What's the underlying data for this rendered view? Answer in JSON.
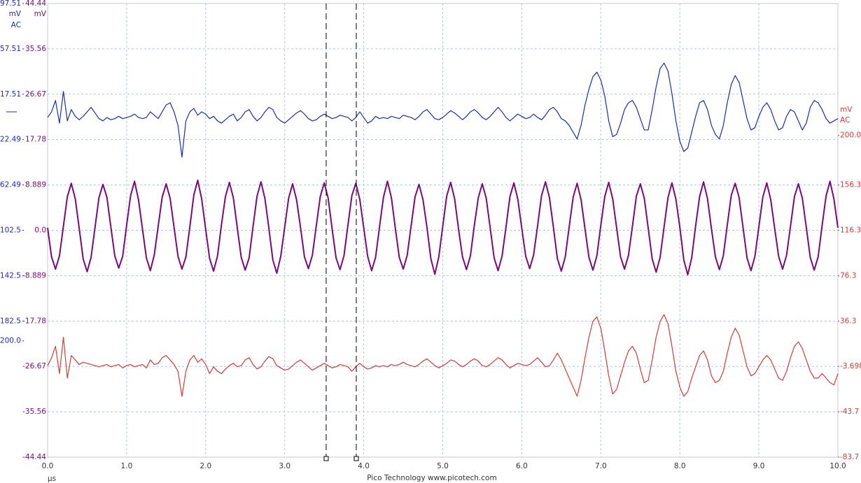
{
  "chart_data": {
    "type": "line",
    "x": [
      0,
      0.05,
      0.1,
      0.15,
      0.2,
      0.25,
      0.3,
      0.35,
      0.4,
      0.45,
      0.5,
      0.55,
      0.6,
      0.65,
      0.7,
      0.75,
      0.8,
      0.85,
      0.9,
      0.95,
      1,
      1.05,
      1.1,
      1.15,
      1.2,
      1.25,
      1.3,
      1.35,
      1.4,
      1.45,
      1.5,
      1.55,
      1.6,
      1.65,
      1.7,
      1.75,
      1.8,
      1.85,
      1.9,
      1.95,
      2,
      2.05,
      2.1,
      2.15,
      2.2,
      2.25,
      2.3,
      2.35,
      2.4,
      2.45,
      2.5,
      2.55,
      2.6,
      2.65,
      2.7,
      2.75,
      2.8,
      2.85,
      2.9,
      2.95,
      3,
      3.05,
      3.1,
      3.15,
      3.2,
      3.25,
      3.3,
      3.35,
      3.4,
      3.45,
      3.5,
      3.55,
      3.6,
      3.65,
      3.7,
      3.75,
      3.8,
      3.85,
      3.9,
      3.95,
      4,
      4.05,
      4.1,
      4.15,
      4.2,
      4.25,
      4.3,
      4.35,
      4.4,
      4.45,
      4.5,
      4.55,
      4.6,
      4.65,
      4.7,
      4.75,
      4.8,
      4.85,
      4.9,
      4.95,
      5,
      5.05,
      5.1,
      5.15,
      5.2,
      5.25,
      5.3,
      5.35,
      5.4,
      5.45,
      5.5,
      5.55,
      5.6,
      5.65,
      5.7,
      5.75,
      5.8,
      5.85,
      5.9,
      5.95,
      6,
      6.05,
      6.1,
      6.15,
      6.2,
      6.25,
      6.3,
      6.35,
      6.4,
      6.45,
      6.5,
      6.55,
      6.6,
      6.65,
      6.7,
      6.75,
      6.8,
      6.85,
      6.9,
      6.95,
      7,
      7.05,
      7.1,
      7.15,
      7.2,
      7.25,
      7.3,
      7.35,
      7.4,
      7.45,
      7.5,
      7.55,
      7.6,
      7.65,
      7.7,
      7.75,
      7.8,
      7.85,
      7.9,
      7.95,
      8,
      8.05,
      8.1,
      8.15,
      8.2,
      8.25,
      8.3,
      8.35,
      8.4,
      8.45,
      8.5,
      8.55,
      8.6,
      8.65,
      8.7,
      8.75,
      8.8,
      8.85,
      8.9,
      8.95,
      9,
      9.05,
      9.1,
      9.15,
      9.2,
      9.25,
      9.3,
      9.35,
      9.4,
      9.45,
      9.5,
      9.55,
      9.6,
      9.65,
      9.7,
      9.75,
      9.8,
      9.85,
      9.9,
      9.95,
      10
    ],
    "xlim": [
      0,
      10
    ],
    "xticks": [
      {
        "value": 0,
        "label": "0.0"
      },
      {
        "value": 1,
        "label": "1.0"
      },
      {
        "value": 2,
        "label": "2.0"
      },
      {
        "value": 3,
        "label": "3.0"
      },
      {
        "value": 4,
        "label": "4.0"
      },
      {
        "value": 5,
        "label": "5.0"
      },
      {
        "value": 6,
        "label": "6.0"
      },
      {
        "value": 7,
        "label": "7.0"
      },
      {
        "value": 8,
        "label": "8.0"
      },
      {
        "value": 9,
        "label": "9.0"
      },
      {
        "value": 10,
        "label": "10.0"
      }
    ],
    "x_unit": "µs",
    "footer": "Pico Technology  www.picotech.com",
    "ylim": [
      -44.44,
      44.44
    ],
    "yticks": [
      44.44,
      35.56,
      26.67,
      17.78,
      8.889,
      {
        "value": 0,
        "label": "0.0"
      },
      -8.889,
      -17.78,
      -26.67,
      -35.56,
      -44.44
    ],
    "y_unit": "mV",
    "y2lim": [
      -83.7,
      316.3
    ],
    "y2ticks": [
      {
        "value": 200,
        "label": "200.0"
      },
      156.3,
      116.3,
      76.3,
      36.3,
      -3.698,
      -43.7,
      -83.7
    ],
    "y2_unit": "mV",
    "y2_coupling": "AC",
    "y3lim": [
      -302.49,
      97.51
    ],
    "y3ticks": [
      97.51,
      57.51,
      17.51,
      -22.49,
      -62.49,
      -102.5,
      -142.5,
      -182.5,
      {
        "value": -200,
        "label": "-200.0"
      }
    ],
    "y3_unit": "mV",
    "y3_coupling": "AC",
    "grid": true,
    "cursors": [
      3.525,
      3.906
    ],
    "series": [
      {
        "color": "#1c2db4",
        "axis": "y3",
        "values": [
          -3,
          2,
          12,
          -8,
          20,
          -6,
          4,
          -2,
          -5,
          -2,
          2,
          6,
          1,
          -4,
          -6,
          -3,
          -5,
          -4,
          -2,
          -4,
          -3,
          -2,
          0,
          -3,
          -4,
          -3,
          2,
          -1,
          -4,
          2,
          8,
          10,
          2,
          -10,
          -38,
          -6,
          2,
          5,
          -1,
          2,
          0,
          -4,
          -2,
          -6,
          -8,
          -5,
          -2,
          0,
          -6,
          -3,
          2,
          4,
          -2,
          -6,
          -3,
          2,
          6,
          4,
          -3,
          -6,
          -8,
          -5,
          -2,
          1,
          3,
          0,
          -4,
          -6,
          -5,
          -2,
          0,
          -2,
          -4,
          -3,
          -1,
          -2,
          -3,
          -6,
          -3,
          2,
          -3,
          -8,
          -6,
          -2,
          -4,
          -3,
          -4,
          -2,
          -3,
          -4,
          -1,
          -2,
          -3,
          -5,
          -2,
          2,
          4,
          0,
          -4,
          -5,
          -3,
          0,
          3,
          1,
          -2,
          -5,
          -2,
          2,
          4,
          1,
          -3,
          -5,
          -2,
          2,
          6,
          2,
          -3,
          -6,
          -3,
          0,
          -2,
          -4,
          -3,
          0,
          -3,
          -5,
          -1,
          4,
          6,
          2,
          -4,
          -6,
          -10,
          -16,
          -22,
          -10,
          8,
          22,
          33,
          37,
          30,
          16,
          -6,
          -20,
          -18,
          -8,
          4,
          10,
          12,
          6,
          -4,
          -14,
          -14,
          4,
          24,
          40,
          45,
          38,
          18,
          -6,
          -24,
          -33,
          -30,
          -16,
          -2,
          10,
          12,
          4,
          -10,
          -18,
          -22,
          -10,
          10,
          26,
          34,
          28,
          12,
          -4,
          -14,
          -12,
          -2,
          6,
          10,
          4,
          -6,
          -14,
          -12,
          -2,
          4,
          2,
          -6,
          -14,
          -8,
          6,
          12,
          10,
          4,
          -4,
          -8,
          -6,
          -4
        ]
      },
      {
        "color": "#7a0a7a",
        "values": [
          0.5,
          -5.2,
          -7.6,
          -5.0,
          0.8,
          6.6,
          9.2,
          6.2,
          0.4,
          -5.6,
          -8.1,
          -5.3,
          0.6,
          6.4,
          9.0,
          6.5,
          0.7,
          -5.0,
          -7.4,
          -5.1,
          1.0,
          6.8,
          9.6,
          6.0,
          0.3,
          -5.4,
          -7.9,
          -4.8,
          0.9,
          6.5,
          9.1,
          6.3,
          0.6,
          -5.1,
          -7.6,
          -5.2,
          0.7,
          6.9,
          9.8,
          6.1,
          0.2,
          -5.5,
          -8.0,
          -5.0,
          1.1,
          6.6,
          9.4,
          6.4,
          0.5,
          -5.3,
          -7.8,
          -5.4,
          0.8,
          6.7,
          9.5,
          6.2,
          0.4,
          -5.8,
          -8.4,
          -5.1,
          0.6,
          6.3,
          9.1,
          6.0,
          0.6,
          -5.2,
          -7.5,
          -4.9,
          0.9,
          6.6,
          9.3,
          6.3,
          0.3,
          -5.4,
          -7.7,
          -5.0,
          1.0,
          6.8,
          9.2,
          6.1,
          0.5,
          -5.1,
          -7.9,
          -5.3,
          0.7,
          6.5,
          9.6,
          6.4,
          0.4,
          -5.3,
          -7.6,
          -4.9,
          0.9,
          6.6,
          9.0,
          6.0,
          0.6,
          -5.6,
          -8.6,
          -5.2,
          0.8,
          6.7,
          9.4,
          6.2,
          0.2,
          -5.2,
          -7.7,
          -5.0,
          1.0,
          6.4,
          9.1,
          6.3,
          0.5,
          -5.4,
          -7.9,
          -5.1,
          0.6,
          6.6,
          9.3,
          6.1,
          0.4,
          -5.1,
          -7.5,
          -4.8,
          0.9,
          6.8,
          9.5,
          6.4,
          0.6,
          -5.5,
          -8.0,
          -5.2,
          0.7,
          6.5,
          9.2,
          6.0,
          0.3,
          -5.3,
          -7.8,
          -5.0,
          1.0,
          6.6,
          9.4,
          6.2,
          0.5,
          -5.2,
          -7.6,
          -4.9,
          0.8,
          6.7,
          9.1,
          6.3,
          0.4,
          -5.6,
          -8.2,
          -5.3,
          0.6,
          6.4,
          9.3,
          6.1,
          0.6,
          -5.8,
          -8.7,
          -5.4,
          0.9,
          6.6,
          9.5,
          6.2,
          0.3,
          -5.2,
          -7.7,
          -5.0,
          1.0,
          6.8,
          9.2,
          6.4,
          0.5,
          -5.4,
          -7.9,
          -5.1,
          0.7,
          6.5,
          9.3,
          6.0,
          0.4,
          -5.1,
          -7.6,
          -4.9,
          0.8,
          6.6,
          9.1,
          6.3,
          0.6,
          -5.3,
          -7.8,
          -5.2,
          0.9,
          6.7,
          9.6,
          6.1,
          0.5
        ]
      },
      {
        "color": "#d23c3c",
        "axis": "y2",
        "values": [
          -3,
          4,
          14,
          -10,
          22,
          -14,
          6,
          2,
          -2,
          0,
          -1,
          -2,
          -3,
          -4,
          -3,
          -2,
          -4,
          -3,
          -2,
          -5,
          -3,
          -2,
          -4,
          -3,
          -2,
          -5,
          2,
          -2,
          -1,
          4,
          6,
          2,
          -2,
          -8,
          -30,
          -8,
          2,
          6,
          0,
          3,
          -2,
          -10,
          -4,
          -8,
          -10,
          -6,
          -3,
          -1,
          -4,
          -3,
          2,
          4,
          -2,
          -6,
          -4,
          1,
          5,
          3,
          -3,
          -5,
          -7,
          -6,
          -3,
          0,
          2,
          -1,
          -4,
          -7,
          -5,
          -3,
          -1,
          -3,
          -5,
          -4,
          -2,
          -3,
          -4,
          -8,
          -4,
          -1,
          -4,
          -6,
          -5,
          -3,
          -4,
          -3,
          -4,
          -2,
          -3,
          -2,
          0,
          -2,
          -3,
          -4,
          -2,
          1,
          3,
          0,
          -3,
          -5,
          -3,
          -1,
          2,
          1,
          -2,
          -4,
          -2,
          1,
          3,
          1,
          -3,
          -4,
          -2,
          1,
          4,
          2,
          -2,
          -5,
          -3,
          -1,
          -2,
          -3,
          -2,
          1,
          4,
          0,
          -4,
          -3,
          2,
          8,
          2,
          -6,
          -14,
          -22,
          -30,
          -16,
          4,
          22,
          36,
          40,
          30,
          10,
          -12,
          -28,
          -24,
          -12,
          0,
          10,
          14,
          8,
          -6,
          -18,
          -16,
          2,
          22,
          36,
          42,
          34,
          14,
          -8,
          -22,
          -30,
          -26,
          -14,
          -4,
          6,
          10,
          2,
          -12,
          -18,
          -16,
          -8,
          8,
          22,
          30,
          24,
          10,
          -4,
          -12,
          -10,
          -4,
          2,
          6,
          2,
          -6,
          -14,
          -16,
          -8,
          4,
          14,
          18,
          12,
          2,
          -8,
          -14,
          -14,
          -10,
          -14,
          -18,
          -20,
          -10
        ]
      }
    ]
  }
}
